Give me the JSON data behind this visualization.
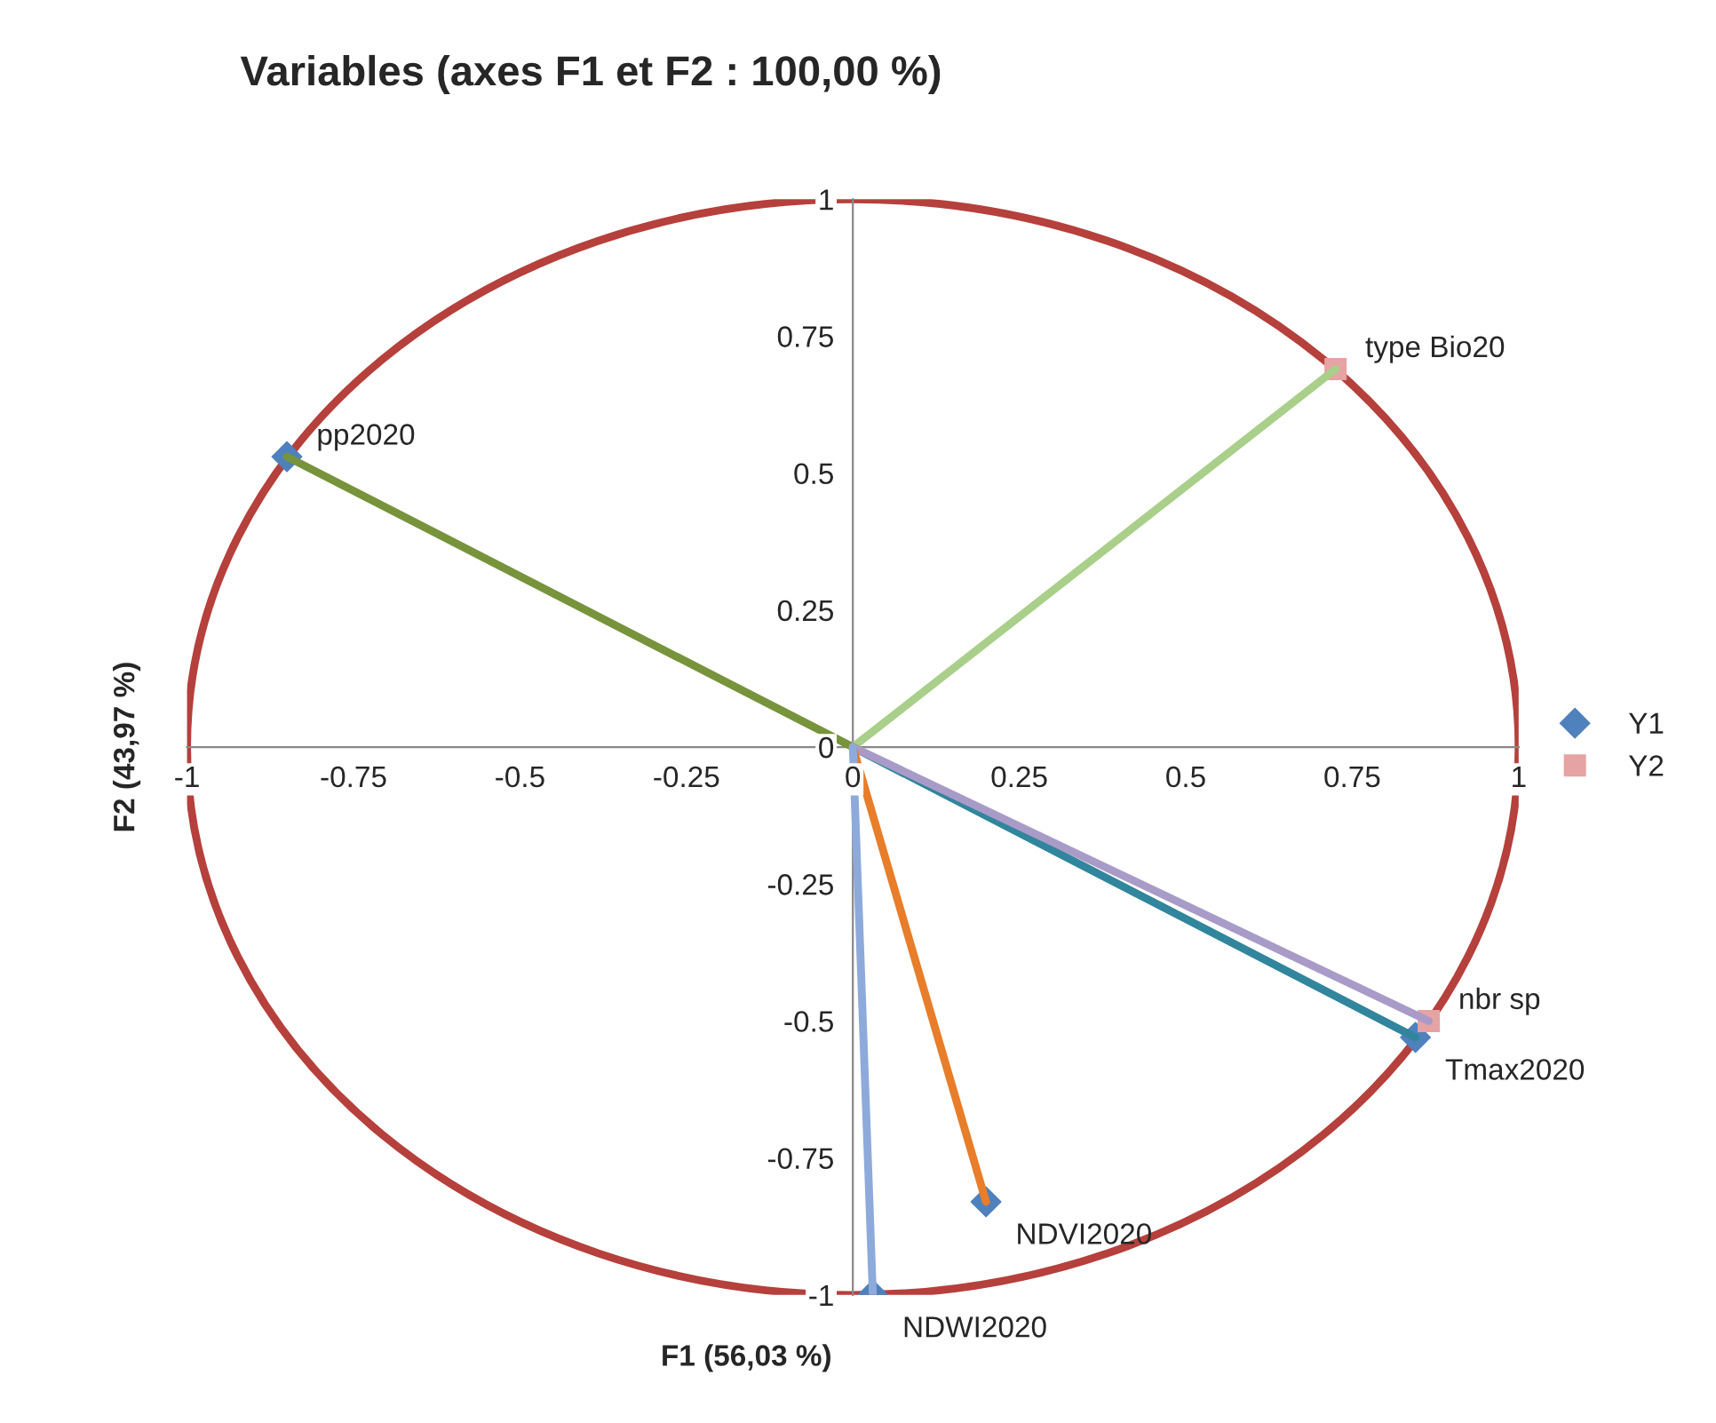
{
  "chart_data": {
    "type": "scatter",
    "title": "Variables (axes F1 et F2 : 100,00 %)",
    "xlabel": "F1 (56,03 %)",
    "ylabel": "F2 (43,97 %)",
    "xlim": [
      -1,
      1
    ],
    "ylim": [
      -1,
      1
    ],
    "xticks": [
      -1,
      -0.75,
      -0.5,
      -0.25,
      0,
      0.25,
      0.5,
      0.75,
      1
    ],
    "yticks": [
      -1,
      -0.75,
      -0.5,
      -0.25,
      0,
      0.25,
      0.5,
      0.75,
      1
    ],
    "grid": false,
    "legend": "right",
    "series": [
      {
        "type": "line",
        "color": "#77933c",
        "x": [
          0,
          -0.85
        ],
        "values": [
          0,
          0.53
        ]
      },
      {
        "type": "line",
        "color": "#a9cf8a",
        "x": [
          0,
          0.725
        ],
        "values": [
          0,
          0.69
        ]
      },
      {
        "type": "line",
        "color": "#31859c",
        "x": [
          0,
          0.845
        ],
        "values": [
          0,
          -0.53
        ]
      },
      {
        "type": "line",
        "color": "#a99bc8",
        "x": [
          0,
          0.865
        ],
        "values": [
          0,
          -0.5
        ]
      },
      {
        "type": "line",
        "color": "#e87d2a",
        "x": [
          0,
          0.2
        ],
        "values": [
          0,
          -0.83
        ]
      },
      {
        "type": "line",
        "color": "#8eaadb",
        "x": [
          0,
          0.03
        ],
        "values": [
          0,
          -1
        ]
      },
      {
        "name": "Y1",
        "color": "#4f81bd",
        "marker": "diamond",
        "x": [
          -0.85,
          0.845,
          0.2,
          0.03
        ],
        "values": [
          0.53,
          -0.53,
          -0.83,
          -1
        ]
      },
      {
        "name": "Y2",
        "color": "#e6a3a3",
        "marker": "square",
        "x": [
          0.725,
          0.865
        ],
        "values": [
          0.69,
          -0.5
        ]
      }
    ],
    "annotations": [
      {
        "text": "pp2020",
        "x": -0.85,
        "y": 0.53
      },
      {
        "text": "Tmax2020",
        "x": 0.845,
        "y": -0.53
      },
      {
        "text": "NDVI2020",
        "x": 0.2,
        "y": -0.83
      },
      {
        "text": "NDWI2020",
        "x": 0.03,
        "y": -1
      },
      {
        "text": "type Bio20",
        "x": 0.725,
        "y": 0.69
      },
      {
        "text": "nbr sp",
        "x": 0.865,
        "y": -0.5
      }
    ]
  }
}
